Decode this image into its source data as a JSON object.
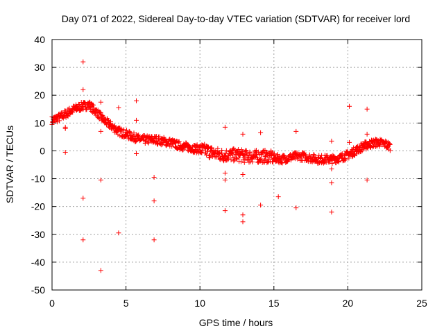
{
  "chart_data": {
    "type": "scatter",
    "title": "Day 071 of 2022, Sidereal Day-to-day VTEC variation (SDTVAR) for receiver lord",
    "xlabel": "GPS time / hours",
    "ylabel": "SDTVAR / TECUs",
    "xlim": [
      0,
      25
    ],
    "ylim": [
      -50,
      40
    ],
    "xticks": [
      0,
      5,
      10,
      15,
      20,
      25
    ],
    "yticks": [
      -50,
      -40,
      -30,
      -20,
      -10,
      0,
      10,
      20,
      30,
      40
    ],
    "grid": true,
    "marker": "+",
    "color": "#ff0000",
    "series_trend": {
      "x": [
        0,
        0.5,
        1.0,
        1.5,
        2.0,
        2.5,
        3.0,
        3.5,
        4.0,
        4.5,
        5.0,
        5.5,
        6.0,
        6.5,
        7.0,
        7.5,
        8.0,
        8.5,
        9.0,
        9.5,
        10.0,
        10.5,
        11.0,
        11.5,
        12.0,
        12.5,
        13.0,
        13.5,
        14.0,
        14.5,
        15.0,
        15.5,
        16.0,
        16.5,
        17.0,
        17.5,
        18.0,
        18.5,
        19.0,
        19.5,
        20.0,
        20.5,
        21.0,
        21.5,
        22.0,
        22.5,
        22.9
      ],
      "y": [
        11,
        12,
        13.5,
        15,
        16,
        16.5,
        14,
        11,
        9,
        7,
        6,
        5,
        4,
        4,
        4,
        3.5,
        3,
        2,
        1.5,
        1,
        0.5,
        0,
        -1,
        -1.5,
        -1.5,
        -1.5,
        -2,
        -2,
        -2,
        -2,
        -2.5,
        -3,
        -2.5,
        -2,
        -2,
        -2.5,
        -3,
        -3,
        -3,
        -2.5,
        -1.5,
        0,
        1.5,
        2.5,
        3,
        2.5,
        1.5
      ]
    },
    "outliers": {
      "x": [
        0.9,
        0.9,
        0.9,
        2.1,
        2.1,
        2.1,
        2.1,
        3.3,
        3.3,
        3.3,
        3.3,
        4.5,
        4.5,
        5.7,
        5.7,
        5.7,
        6.9,
        6.9,
        6.9,
        11.7,
        11.7,
        11.7,
        11.7,
        12.9,
        12.9,
        12.9,
        12.9,
        14.1,
        14.1,
        15.3,
        16.5,
        16.5,
        18.9,
        18.9,
        18.9,
        18.9,
        20.1,
        20.1,
        21.3,
        21.3,
        21.3
      ],
      "y": [
        8.5,
        -0.5,
        8.0,
        32,
        22,
        -17,
        -32,
        17.5,
        7,
        -10.5,
        -43,
        15.5,
        -29.5,
        18,
        11,
        -1,
        -9.5,
        -18,
        -32,
        8.5,
        -10.5,
        -8,
        -21.5,
        6,
        -8.5,
        -23,
        -25.5,
        6.5,
        -19.5,
        -16.5,
        7,
        -20.5,
        3.5,
        -11.5,
        -6.5,
        -22,
        16,
        3,
        15,
        6,
        -10.5
      ]
    }
  }
}
